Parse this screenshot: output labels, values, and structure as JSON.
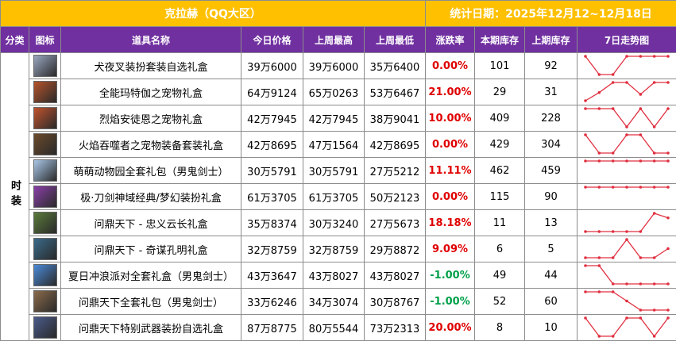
{
  "header": {
    "title": "克拉赫（QQ大区）",
    "date": "统计日期：2025年12月12~12月18日"
  },
  "table": {
    "columns": [
      "分类",
      "图标",
      "道具名称",
      "今日价格",
      "上周最高",
      "上周最低",
      "涨跌率",
      "本期库存",
      "上期库存",
      "7日走势图"
    ],
    "category": "时装",
    "rows": [
      {
        "name": "犬夜叉装扮套装自选礼盒",
        "today": "39万6000",
        "high": "39万6000",
        "low": "35万6400",
        "change": "0.00%",
        "stock": 101,
        "prev_stock": 92,
        "trend": [
          1,
          0,
          0,
          1,
          1,
          1,
          1
        ]
      },
      {
        "name": "全能玛特伽之宠物礼盒",
        "today": "64万9124",
        "high": "65万0263",
        "low": "53万6467",
        "change": "21.00%",
        "stock": 29,
        "prev_stock": 31,
        "trend": [
          0,
          0.45,
          1,
          1,
          0.35,
          1,
          1
        ]
      },
      {
        "name": "烈焰安徒恩之宠物礼盒",
        "today": "42万7945",
        "high": "42万7945",
        "low": "38万9041",
        "change": "10.00%",
        "stock": 409,
        "prev_stock": 228,
        "trend": [
          1,
          1,
          1,
          0,
          1,
          0,
          1
        ]
      },
      {
        "name": "火焰吞噬者之宠物装备套装礼盒",
        "today": "42万8695",
        "high": "47万1564",
        "low": "42万8695",
        "change": "0.00%",
        "stock": 429,
        "prev_stock": 304,
        "trend": [
          1,
          0,
          0,
          1,
          1,
          0,
          0
        ]
      },
      {
        "name": "萌萌动物园全套礼包（男鬼剑士）",
        "today": "30万5791",
        "high": "30万5791",
        "low": "27万5212",
        "change": "11.11%",
        "stock": 462,
        "prev_stock": 459,
        "trend": [
          1,
          1,
          1,
          1,
          1,
          1,
          1
        ]
      },
      {
        "name": "极·刀剑神域经典/梦幻装扮礼盒",
        "today": "61万3705",
        "high": "61万3705",
        "low": "50万2123",
        "change": "0.00%",
        "stock": 115,
        "prev_stock": 90,
        "trend": [
          1,
          1,
          1,
          1,
          1,
          1,
          1
        ]
      },
      {
        "name": "问鼎天下 - 忠义云长礼盒",
        "today": "35万8374",
        "high": "30万3240",
        "low": "27万5673",
        "change": "18.18%",
        "stock": 11,
        "prev_stock": 13,
        "trend": [
          0,
          0,
          0,
          0,
          0,
          1,
          0.75
        ]
      },
      {
        "name": "问鼎天下 - 奇谋孔明礼盒",
        "today": "32万8759",
        "high": "32万8759",
        "low": "29万8872",
        "change": "9.09%",
        "stock": 6,
        "prev_stock": 5,
        "trend": [
          0,
          0,
          0,
          1,
          0,
          0,
          0.5
        ]
      },
      {
        "name": "夏日冲浪派对全套礼盒（男鬼剑士）",
        "today": "43万3647",
        "high": "43万8027",
        "low": "43万8027",
        "change": "-1.00%",
        "stock": 49,
        "prev_stock": 44,
        "trend": [
          1,
          1,
          0,
          0,
          0,
          0,
          0
        ]
      },
      {
        "name": "问鼎天下全套礼包（男鬼剑士）",
        "today": "33万6246",
        "high": "34万3074",
        "low": "30万8767",
        "change": "-1.00%",
        "stock": 52,
        "prev_stock": 60,
        "trend": [
          1,
          1,
          1,
          0.5,
          0,
          0,
          0
        ]
      },
      {
        "name": "问鼎天下特别武器装扮自选礼盒",
        "today": "87万8775",
        "high": "80万5544",
        "low": "73万2313",
        "change": "20.00%",
        "stock": 8,
        "prev_stock": 10,
        "trend": [
          1,
          0,
          0,
          1,
          1,
          0,
          1
        ]
      }
    ]
  }
}
